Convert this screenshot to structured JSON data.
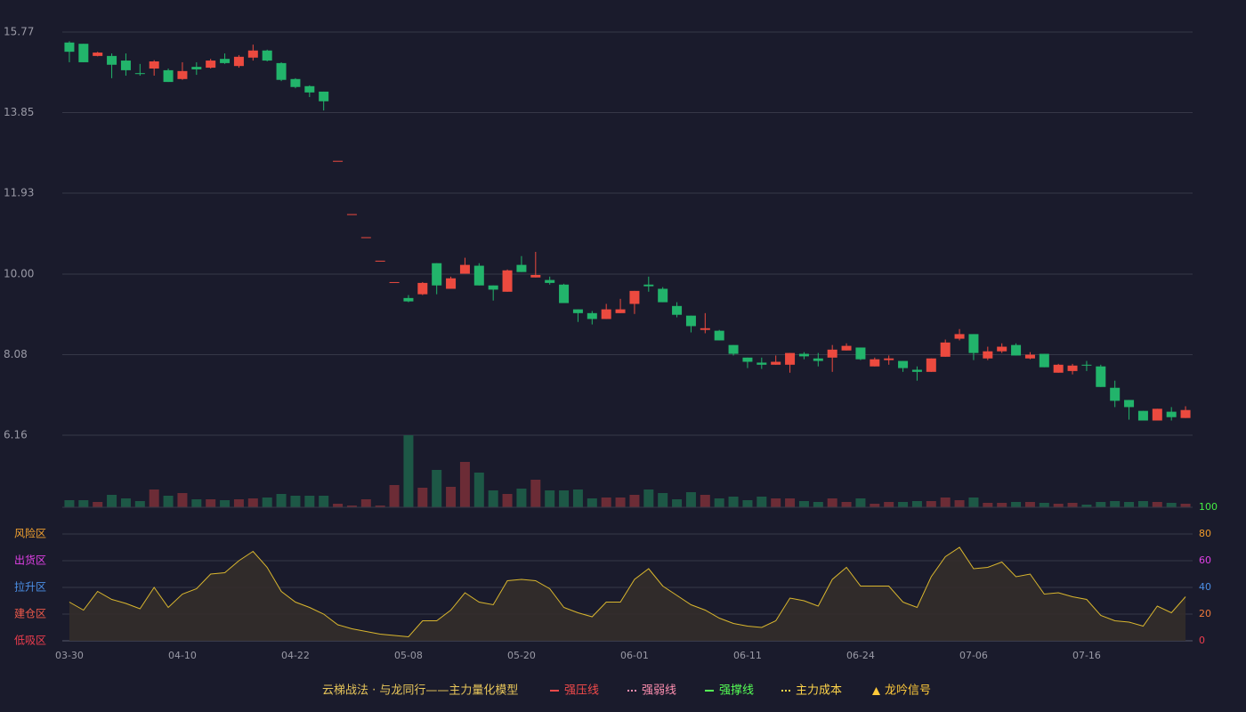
{
  "chart_data": [
    {
      "type": "candlestick",
      "categories": [
        "03-30",
        null,
        null,
        null,
        null,
        null,
        null,
        null,
        "04-10",
        null,
        null,
        null,
        null,
        null,
        null,
        null,
        "04-22",
        null,
        null,
        null,
        null,
        null,
        null,
        null,
        "05-08",
        null,
        null,
        null,
        null,
        null,
        null,
        null,
        "05-20",
        null,
        null,
        null,
        null,
        null,
        null,
        null,
        "06-01",
        null,
        null,
        null,
        null,
        null,
        null,
        null,
        "06-11",
        null,
        null,
        null,
        null,
        null,
        null,
        null,
        "06-24",
        null,
        null,
        null,
        null,
        null,
        null,
        null,
        "07-06",
        null,
        null,
        null,
        null,
        null,
        null,
        null,
        "07-16",
        null,
        null,
        null,
        null,
        null,
        null,
        null
      ],
      "open": [
        15.52,
        15.49,
        15.2,
        15.2,
        15.09,
        14.79,
        14.9,
        14.86,
        14.65,
        14.94,
        14.92,
        15.13,
        14.96,
        15.16,
        15.33,
        15.03,
        14.65,
        14.48,
        14.35,
        12.7,
        11.43,
        10.88,
        10.32,
        9.81,
        9.43,
        9.52,
        10.26,
        9.65,
        10.01,
        10.2,
        9.73,
        9.58,
        10.22,
        9.92,
        9.86,
        9.75,
        9.16,
        9.07,
        8.93,
        9.07,
        9.29,
        9.75,
        9.65,
        9.24,
        9.01,
        8.67,
        8.65,
        8.31,
        8.01,
        7.89,
        7.84,
        7.84,
        8.1,
        7.99,
        8.01,
        8.18,
        8.25,
        7.8,
        7.95,
        7.93,
        7.72,
        7.67,
        8.03,
        8.46,
        8.57,
        7.99,
        8.16,
        8.31,
        7.99,
        8.1,
        7.65,
        7.69,
        7.84,
        7.8,
        7.29,
        7.0,
        6.74,
        6.51,
        6.72,
        6.57
      ],
      "high": [
        15.55,
        15.49,
        15.3,
        15.26,
        15.26,
        15.01,
        15.1,
        14.9,
        15.05,
        15.05,
        15.13,
        15.26,
        15.22,
        15.47,
        15.35,
        15.05,
        14.67,
        14.5,
        14.35,
        12.7,
        11.43,
        10.88,
        10.32,
        9.81,
        9.5,
        9.81,
        10.26,
        9.94,
        10.39,
        10.26,
        9.73,
        10.11,
        10.43,
        10.53,
        9.94,
        9.77,
        9.16,
        9.12,
        9.29,
        9.41,
        9.6,
        9.94,
        9.69,
        9.33,
        9.01,
        9.07,
        8.67,
        8.31,
        8.01,
        8.01,
        8.06,
        8.12,
        8.14,
        8.12,
        8.31,
        8.35,
        8.25,
        8.01,
        8.06,
        7.93,
        7.8,
        7.99,
        8.44,
        8.69,
        8.57,
        8.27,
        8.35,
        8.35,
        8.14,
        8.1,
        7.86,
        7.86,
        7.93,
        7.84,
        7.46,
        7.0,
        6.74,
        6.79,
        6.83,
        6.85
      ],
      "low": [
        15.05,
        15.05,
        15.19,
        14.67,
        14.73,
        14.73,
        14.73,
        14.58,
        14.63,
        14.75,
        14.9,
        15.01,
        14.92,
        15.09,
        15.07,
        14.6,
        14.43,
        14.22,
        13.9,
        12.7,
        11.43,
        10.88,
        10.32,
        9.81,
        9.33,
        9.5,
        9.52,
        9.65,
        10.01,
        9.73,
        9.37,
        9.58,
        10.05,
        9.92,
        9.75,
        9.31,
        8.86,
        8.8,
        8.93,
        9.07,
        9.05,
        9.58,
        9.33,
        8.97,
        8.61,
        8.59,
        8.42,
        8.06,
        7.76,
        7.74,
        7.84,
        7.65,
        7.97,
        7.8,
        7.67,
        8.18,
        7.95,
        7.8,
        7.84,
        7.67,
        7.46,
        7.67,
        8.03,
        8.42,
        7.95,
        7.95,
        8.12,
        8.06,
        7.97,
        7.78,
        7.65,
        7.61,
        7.69,
        7.31,
        6.83,
        6.53,
        6.51,
        6.51,
        6.51,
        6.57
      ],
      "close": [
        15.3,
        15.05,
        15.28,
        14.99,
        14.86,
        14.77,
        15.07,
        14.58,
        14.84,
        14.88,
        15.09,
        15.03,
        15.18,
        15.33,
        15.09,
        14.63,
        14.46,
        14.33,
        14.12,
        12.7,
        11.43,
        10.88,
        10.32,
        9.81,
        9.35,
        9.79,
        9.73,
        9.9,
        10.22,
        9.73,
        9.63,
        10.09,
        10.05,
        9.98,
        9.79,
        9.31,
        9.07,
        8.93,
        9.16,
        9.16,
        9.6,
        9.71,
        9.33,
        9.03,
        8.76,
        8.71,
        8.42,
        8.1,
        7.91,
        7.84,
        7.91,
        8.12,
        8.04,
        7.93,
        8.2,
        8.29,
        7.97,
        7.97,
        7.99,
        7.76,
        7.67,
        7.99,
        8.37,
        8.57,
        8.12,
        8.16,
        8.27,
        8.06,
        8.08,
        7.78,
        7.84,
        7.82,
        7.82,
        7.31,
        6.98,
        6.83,
        6.51,
        6.79,
        6.59,
        6.76
      ],
      "ylim": [
        6.16,
        15.77
      ],
      "yticks": [
        15.77,
        13.85,
        11.93,
        {
          "value": 10,
          "label": "10.00"
        },
        8.08,
        6.16
      ],
      "up_color": "#ec4a3f",
      "down_color": "#22b46b",
      "grid": true
    },
    {
      "type": "volume",
      "values": [
        8,
        8,
        6,
        14,
        10,
        7,
        20,
        13,
        16,
        9,
        9,
        8,
        9,
        10,
        11,
        15,
        13,
        13,
        13,
        4,
        2,
        9,
        2,
        25,
        81,
        22,
        42,
        23,
        51,
        39,
        19,
        15,
        21,
        31,
        19,
        19,
        20,
        10,
        11,
        11,
        14,
        20,
        16,
        9,
        17,
        14,
        10,
        12,
        8,
        12,
        10,
        10,
        7,
        6,
        10,
        6,
        10,
        4,
        6,
        6,
        7,
        7,
        11,
        8,
        11,
        5,
        5,
        6,
        6,
        5,
        4,
        5,
        3,
        6,
        7,
        6,
        7,
        6,
        5,
        4
      ],
      "up_color": "#6c2c36",
      "down_color": "#1d5846"
    },
    {
      "type": "area",
      "values": [
        29,
        23,
        37,
        31,
        28,
        24,
        40,
        25,
        35,
        39,
        50,
        51,
        60,
        67,
        55,
        37,
        29,
        25,
        20,
        12,
        9,
        7,
        5,
        4,
        3,
        15,
        15,
        23,
        36,
        29,
        27,
        45,
        46,
        45,
        39,
        25,
        21,
        18,
        29,
        29,
        46,
        54,
        41,
        34,
        27,
        23,
        17,
        13,
        11,
        10,
        15,
        32,
        30,
        26,
        46,
        55,
        41,
        41,
        41,
        29,
        25,
        48,
        63,
        70,
        54,
        55,
        59,
        48,
        50,
        35,
        36,
        33,
        31,
        19,
        15,
        14,
        11,
        26,
        21,
        33
      ],
      "color": "#d9b62e",
      "fill": "#332e2a",
      "ylim": [
        0,
        100
      ],
      "yticks": [
        0,
        20,
        40,
        60,
        80,
        100
      ],
      "ytick_colors": [
        "#ef3d4e",
        "#f07a3a",
        "#4b8fe6",
        "#e040e6",
        "#f09a2a",
        "#44ee44"
      ],
      "zones": [
        "低吸区",
        "建仓区",
        "拉升区",
        "出货区",
        "风险区"
      ],
      "zone_colors": [
        "#ef3d4e",
        "#ef5a4a",
        "#4b8fe6",
        "#e040e6",
        "#f0a030"
      ],
      "grid": true
    }
  ],
  "legend": {
    "title": "云梯战法 · 与龙同行——主力量化模型",
    "items": [
      {
        "name": "强压线",
        "color": "#f24a4a",
        "style": "solid"
      },
      {
        "name": "强弱线",
        "color": "#ff8fb0",
        "style": "dashed"
      },
      {
        "name": "强撑线",
        "color": "#55ff55",
        "style": "solid"
      },
      {
        "name": "主力成本",
        "color": "#ffd54a",
        "style": "dashed"
      },
      {
        "name": "龙吟信号",
        "color": "#ffc93a",
        "style": "triangle"
      }
    ]
  }
}
